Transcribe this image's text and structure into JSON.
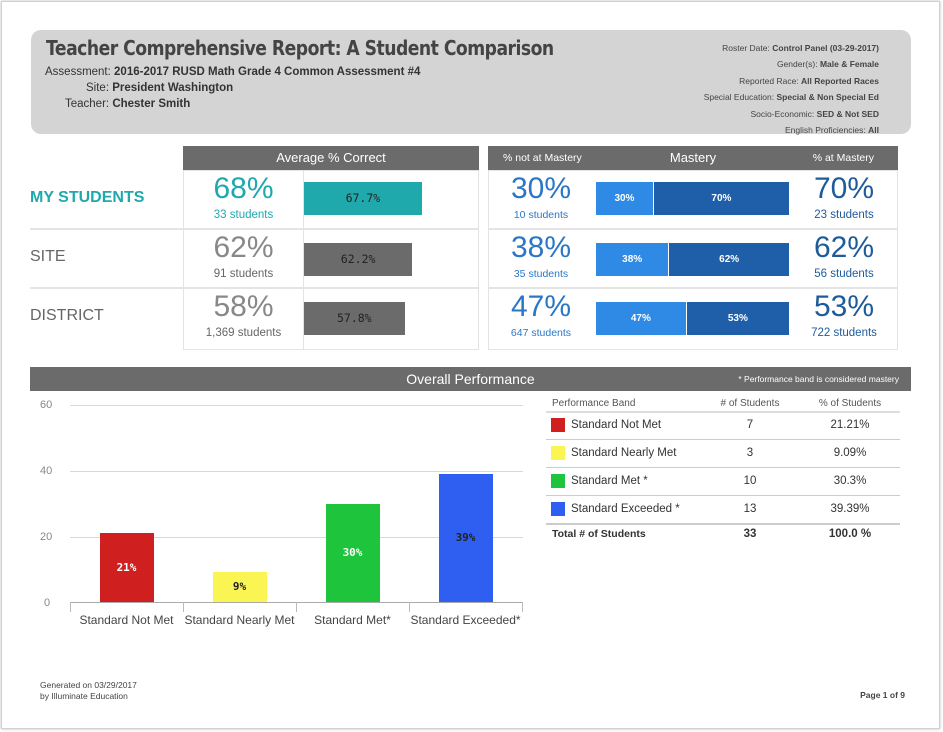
{
  "header": {
    "title": "Teacher Comprehensive Report: A Student Comparison",
    "assessment_label": "Assessment:",
    "assessment_value": "2016-2017 RUSD Math Grade 4 Common Assessment #4",
    "site_label": "Site:",
    "site_value": "President Washington",
    "teacher_label": "Teacher:",
    "teacher_value": "Chester Smith",
    "filters": [
      {
        "label": "Roster Date:",
        "value": "Control Panel (03-29-2017)"
      },
      {
        "label": "Gender(s):",
        "value": "Male & Female"
      },
      {
        "label": "Reported Race:",
        "value": "All Reported Races"
      },
      {
        "label": "Special Education:",
        "value": "Special & Non Special Ed"
      },
      {
        "label": "Socio-Economic:",
        "value": "SED & Not SED"
      },
      {
        "label": "English Proficiencies:",
        "value": "All"
      }
    ]
  },
  "comparison": {
    "avg_header": "Average % Correct",
    "not_mastery_header": "% not at Mastery",
    "mastery_header": "Mastery",
    "at_mastery_header": "% at Mastery",
    "rows": [
      {
        "label": "MY STUDENTS",
        "avg_pct": "68%",
        "avg_students": "33 students",
        "avg_bar_label": "67.7%",
        "avg_bar_value": 67.7,
        "not_pct": "30%",
        "not_students": "10 students",
        "not_bar_label": "30%",
        "not_value": 30,
        "at_pct": "70%",
        "at_students": "23 students",
        "at_bar_label": "70%",
        "at_value": 70
      },
      {
        "label": "SITE",
        "avg_pct": "62%",
        "avg_students": "91 students",
        "avg_bar_label": "62.2%",
        "avg_bar_value": 62.2,
        "not_pct": "38%",
        "not_students": "35 students",
        "not_bar_label": "38%",
        "not_value": 38,
        "at_pct": "62%",
        "at_students": "56 students",
        "at_bar_label": "62%",
        "at_value": 62
      },
      {
        "label": "DISTRICT",
        "avg_pct": "58%",
        "avg_students": "1,369 students",
        "avg_bar_label": "57.8%",
        "avg_bar_value": 57.8,
        "not_pct": "47%",
        "not_students": "647 students",
        "not_bar_label": "47%",
        "not_value": 47,
        "at_pct": "53%",
        "at_students": "722 students",
        "at_bar_label": "53%",
        "at_value": 53
      }
    ]
  },
  "performance": {
    "title": "Overall Performance",
    "note": "* Performance band is considered mastery",
    "table": {
      "headers": [
        "Performance Band",
        "# of Students",
        "% of Students"
      ],
      "rows": [
        {
          "band": "Standard Not Met",
          "count": "7",
          "pct": "21.21%",
          "color": "#d01f1f"
        },
        {
          "band": "Standard Nearly Met",
          "count": "3",
          "pct": "9.09%",
          "color": "#fbf553"
        },
        {
          "band": "Standard Met *",
          "count": "10",
          "pct": "30.3%",
          "color": "#1fc43d"
        },
        {
          "band": "Standard Exceeded *",
          "count": "13",
          "pct": "39.39%",
          "color": "#2f5ff0"
        }
      ],
      "total": {
        "label": "Total # of Students",
        "count": "33",
        "pct": "100.0 %"
      }
    }
  },
  "chart_data": {
    "type": "bar",
    "categories": [
      "Standard Not Met",
      "Standard Nearly Met",
      "Standard Met*",
      "Standard Exceeded*"
    ],
    "values": [
      21,
      9,
      30,
      39
    ],
    "data_labels": [
      "21%",
      "9%",
      "30%",
      "39%"
    ],
    "colors": [
      "#d01f1f",
      "#fbf553",
      "#1fc43d",
      "#2f5ff0"
    ],
    "yticks": [
      "0",
      "20",
      "40",
      "60"
    ],
    "ylim": [
      0,
      60
    ],
    "grid": true
  },
  "footer": {
    "generated": "Generated on 03/29/2017",
    "by": "by Illuminate Education",
    "page": "Page 1 of 9"
  }
}
